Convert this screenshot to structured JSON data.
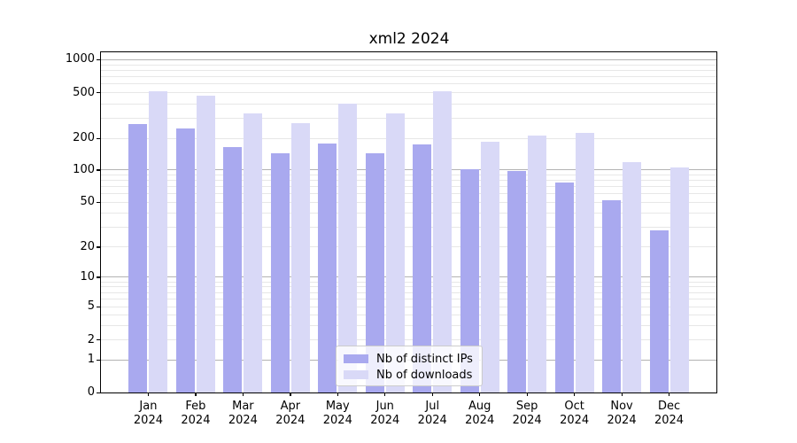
{
  "title": "xml2 2024",
  "chart_data": {
    "type": "bar",
    "title": "xml2 2024",
    "xlabel": "",
    "ylabel": "",
    "yscale": "symlog",
    "grid": true,
    "legend_position": "inside-bottom-center",
    "year": "2024",
    "categories": [
      "Jan",
      "Feb",
      "Mar",
      "Apr",
      "May",
      "Jun",
      "Jul",
      "Aug",
      "Sep",
      "Oct",
      "Nov",
      "Dec"
    ],
    "series": [
      {
        "name": "Nb of distinct IPs",
        "color": "#a9a9ef",
        "values": [
          266,
          246,
          164,
          145,
          180,
          144,
          174,
          101,
          99,
          76,
          52,
          28
        ]
      },
      {
        "name": "Nb of downloads",
        "color": "#d9d9f7",
        "values": [
          520,
          475,
          330,
          272,
          405,
          330,
          515,
          186,
          210,
          225,
          119,
          105
        ]
      }
    ],
    "y_ticks": [
      0,
      1,
      2,
      5,
      10,
      20,
      50,
      100,
      200,
      500,
      1000
    ],
    "y_tick_labels": [
      "0",
      "1",
      "2",
      "5",
      "10",
      "20",
      "50",
      "100",
      "200",
      "500",
      "1000"
    ],
    "ylim": [
      0,
      1120
    ]
  },
  "colors": {
    "grid_major": "#b3b3b3",
    "grid_minor": "#e7e7e7",
    "axis": "#000000",
    "legend_border": "#cccccc"
  }
}
